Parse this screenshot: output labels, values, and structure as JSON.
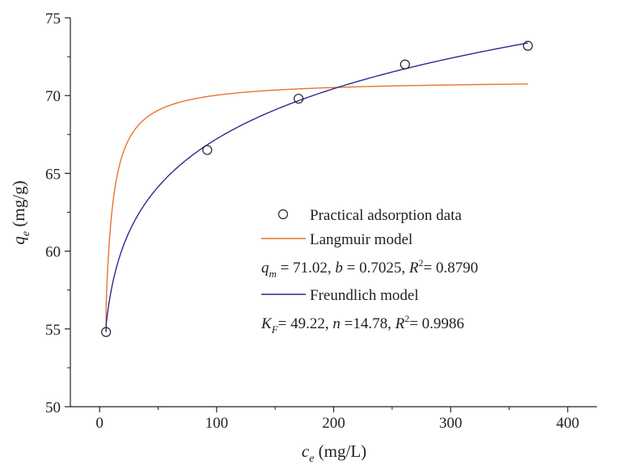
{
  "chart_data": {
    "type": "scatter",
    "xlabel": {
      "symbol": "c",
      "sub": "e",
      "unit": " (mg/L)"
    },
    "ylabel": {
      "symbol": "q",
      "sub": "e",
      "unit": " (mg/g)"
    },
    "xlim": [
      -25,
      425
    ],
    "ylim": [
      50,
      75
    ],
    "xticks": [
      0,
      100,
      200,
      300,
      400
    ],
    "yticks": [
      50,
      55,
      60,
      65,
      70,
      75
    ],
    "xtick_labels": [
      "0",
      "100",
      "200",
      "300",
      "400"
    ],
    "ytick_labels": [
      "50",
      "55",
      "60",
      "65",
      "70",
      "75"
    ],
    "grid": false,
    "legend_position": "center-right",
    "series": [
      {
        "name": "Practical adsorption data",
        "kind": "scatter",
        "color": "#222222",
        "x": [
          5.5,
          92,
          170,
          261,
          366
        ],
        "y": [
          54.8,
          66.5,
          69.8,
          72.0,
          73.2
        ]
      },
      {
        "name": "Langmuir model",
        "kind": "line",
        "color": "#e8732c",
        "model": "langmuir",
        "x_range": [
          5.5,
          366
        ],
        "y": [
          54.8,
          61.8,
          66.4,
          68.8,
          69.7,
          70.1,
          70.3,
          70.4,
          70.5,
          70.6,
          70.7
        ]
      },
      {
        "name": "Freundlich model",
        "kind": "line",
        "color": "#2a2a8c",
        "model": "freundlich",
        "x_range": [
          5.5,
          366
        ],
        "y": [
          54.8,
          60.0,
          63.6,
          66.4,
          68.6,
          70.3,
          71.5,
          72.5,
          73.4
        ]
      }
    ],
    "annotations": {
      "langmuir_params": [
        {
          "sym": "q",
          "sub": "m",
          "val": " = 71.02, "
        },
        {
          "sym": "b",
          "sub": "",
          "val": " = 0.7025, "
        },
        {
          "sym": "R",
          "sup": "2",
          "val": "= 0.8790"
        }
      ],
      "freundlich_params": [
        {
          "sym": "K",
          "sub": "F",
          "val": "= 49.22, "
        },
        {
          "sym": "n",
          "sub": "",
          "val": " =14.78, "
        },
        {
          "sym": "R",
          "sup": "2",
          "val": "= 0.9986"
        }
      ]
    }
  }
}
